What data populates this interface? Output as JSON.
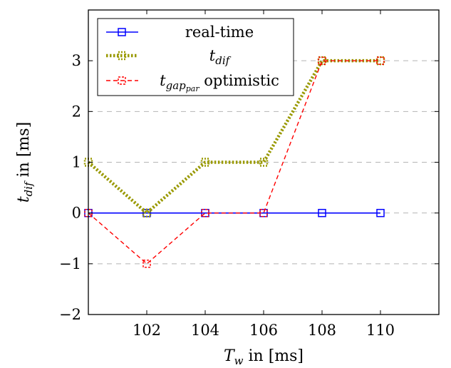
{
  "chart_data": {
    "type": "line",
    "xlabel": "T",
    "xlabel_sub": "w",
    "xlabel_rest": " in [ms]",
    "ylabel": "t",
    "ylabel_sub": "dif",
    "ylabel_rest": " in [ms]",
    "xlim": [
      100,
      112
    ],
    "ylim": [
      -2,
      4
    ],
    "xticks": [
      102,
      104,
      106,
      108,
      110
    ],
    "yticks": [
      -2,
      -1,
      0,
      1,
      2,
      3
    ],
    "ytick_labels": [
      "−2",
      "−1",
      "0",
      "1",
      "2",
      "3"
    ],
    "grid": "horizontal dashed",
    "legend_position": "top-left",
    "series": [
      {
        "name": "real-time",
        "color": "#0000ff",
        "style": "solid",
        "marker": "square",
        "x": [
          100,
          102,
          104,
          106,
          108,
          110
        ],
        "y": [
          0,
          0,
          0,
          0,
          0,
          0
        ]
      },
      {
        "name": "t",
        "name_sub": "dif",
        "color": "#999900",
        "style": "dotted",
        "marker": "square",
        "x": [
          100,
          102,
          104,
          106,
          108,
          110
        ],
        "y": [
          1,
          0,
          1,
          1,
          3,
          3
        ]
      },
      {
        "name": "t",
        "name_sub": "gap",
        "name_subsub": "par",
        "name_rest": " optimistic",
        "color": "#ff0000",
        "style": "dashed",
        "marker": "square",
        "x": [
          100,
          102,
          104,
          106,
          108,
          110
        ],
        "y": [
          0,
          -1,
          0,
          0,
          3,
          3
        ]
      }
    ]
  }
}
